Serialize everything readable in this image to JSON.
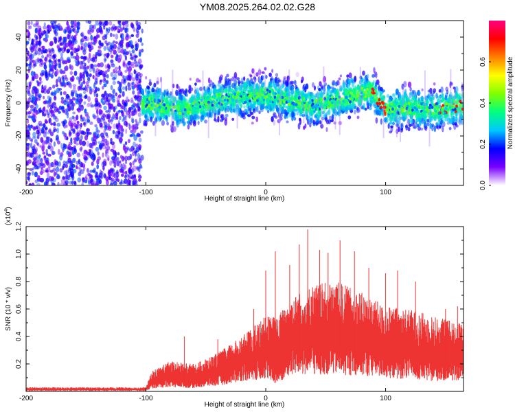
{
  "title": "YM08.2025.264.02.02.G28",
  "chart_data": [
    {
      "type": "heatmap",
      "title": "YM08.2025.264.02.02.G28",
      "xlabel": "Height of straight line (km)",
      "ylabel": "Frequency (Hz)",
      "xlim": [
        -200,
        165
      ],
      "ylim": [
        -50,
        50
      ],
      "xticks": [
        -200,
        -100,
        0,
        100
      ],
      "yticks": [
        -40,
        -20,
        0,
        20,
        40
      ],
      "colorbar": {
        "label": "Normalized spectral amplitude",
        "range": [
          0.0,
          0.8
        ],
        "ticks": [
          "0.0",
          "0.2",
          "0.4",
          "0.6"
        ],
        "colors": [
          "#ffffff",
          "#7a00ff",
          "#0000ff",
          "#00c8ff",
          "#00ff80",
          "#80ff00",
          "#ffff00",
          "#ff8000",
          "#ff0000",
          "#ff0080"
        ]
      },
      "regions": [
        {
          "name": "noise",
          "x_range": [
            -200,
            -103
          ],
          "freq_range": [
            -50,
            50
          ],
          "typical_amplitude": 0.08
        },
        {
          "name": "signal",
          "x_range": [
            -103,
            165
          ],
          "center_freq_profile": [
            [
              -100,
              0
            ],
            [
              -70,
              -4
            ],
            [
              -40,
              2
            ],
            [
              0,
              5
            ],
            [
              40,
              -2
            ],
            [
              70,
              4
            ],
            [
              88,
              7
            ],
            [
              100,
              -4
            ],
            [
              120,
              -3
            ],
            [
              140,
              -4
            ],
            [
              165,
              -1
            ]
          ],
          "half_width_hz": 8,
          "peak_amplitude": 0.75
        }
      ]
    },
    {
      "type": "area",
      "xlabel": "Height of straight line (km)",
      "ylabel": "SNR (10 * v/v)",
      "y_multiplier": "(x10^4)",
      "xlim": [
        -200,
        165
      ],
      "ylim": [
        0,
        1.2
      ],
      "xticks": [
        -200,
        -100,
        0,
        100
      ],
      "yticks": [
        0.2,
        0.4,
        0.6,
        0.8,
        1.0,
        1.2
      ],
      "ytick_labels": [
        "0.2",
        "0.4",
        "0.6",
        "0.8",
        "1.0",
        "1.2"
      ],
      "series": [
        {
          "name": "SNR",
          "color": "#ee3333",
          "envelope_x": [
            -200,
            -100,
            -95,
            -80,
            -60,
            -40,
            -20,
            0,
            10,
            20,
            40,
            60,
            80,
            100,
            120,
            140,
            165
          ],
          "envelope_base": [
            0.01,
            0.01,
            0.05,
            0.08,
            0.06,
            0.1,
            0.18,
            0.22,
            0.12,
            0.28,
            0.3,
            0.3,
            0.28,
            0.24,
            0.22,
            0.18,
            0.2
          ],
          "envelope_top": [
            0.03,
            0.03,
            0.15,
            0.22,
            0.2,
            0.28,
            0.4,
            0.55,
            0.55,
            0.68,
            0.78,
            0.8,
            0.72,
            0.62,
            0.6,
            0.55,
            0.5
          ],
          "peaks": [
            [
              -68,
              0.4
            ],
            [
              -40,
              0.38
            ],
            [
              -10,
              0.6
            ],
            [
              0,
              0.88
            ],
            [
              8,
              1.02
            ],
            [
              20,
              0.92
            ],
            [
              28,
              1.07
            ],
            [
              35,
              1.18
            ],
            [
              45,
              1.03
            ],
            [
              52,
              1.01
            ],
            [
              62,
              1.1
            ],
            [
              74,
              1.02
            ],
            [
              86,
              0.9
            ],
            [
              100,
              0.86
            ],
            [
              110,
              0.88
            ],
            [
              125,
              0.8
            ],
            [
              150,
              0.6
            ],
            [
              160,
              0.62
            ]
          ]
        }
      ]
    }
  ]
}
